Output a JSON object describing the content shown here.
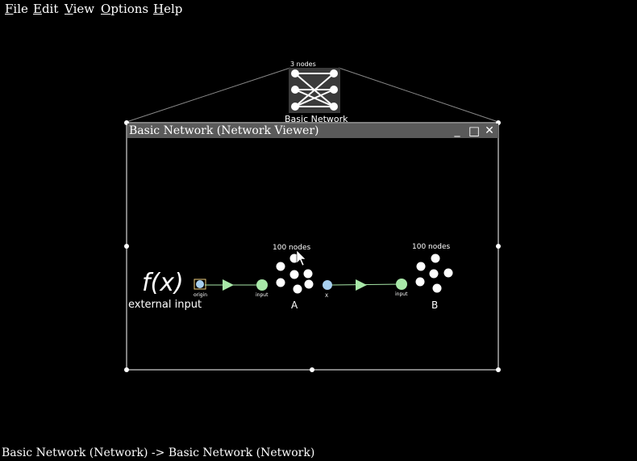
{
  "menu": {
    "file": {
      "u": "F",
      "rest": "ile"
    },
    "edit": {
      "u": "E",
      "rest": "dit"
    },
    "view": {
      "u": "V",
      "rest": "iew"
    },
    "options": {
      "u": "O",
      "rest": "ptions"
    },
    "help": {
      "u": "H",
      "rest": "elp"
    }
  },
  "top_network": {
    "count_label": "3 nodes",
    "name": "Basic Network"
  },
  "viewer": {
    "title": "Basic Network (Network Viewer)",
    "minimize_glyph": "_",
    "maximize_glyph": "□",
    "close_glyph": "✕"
  },
  "function_input": {
    "symbol": "f(x)",
    "label": "external input",
    "origin_label": "origin"
  },
  "ensemble_a": {
    "count_label": "100 nodes",
    "name": "A",
    "input_label": "input",
    "output_label": "X"
  },
  "ensemble_b": {
    "count_label": "100 nodes",
    "name": "B",
    "input_label": "input"
  },
  "status_bar": {
    "text": "Basic Network (Network) -> Basic Network (Network)"
  },
  "colors": {
    "background": "#000000",
    "title_bar": "#5a5a5a",
    "termination": "#a8e8a8",
    "origin": "#a8d0f0",
    "border": "#ffffff"
  }
}
